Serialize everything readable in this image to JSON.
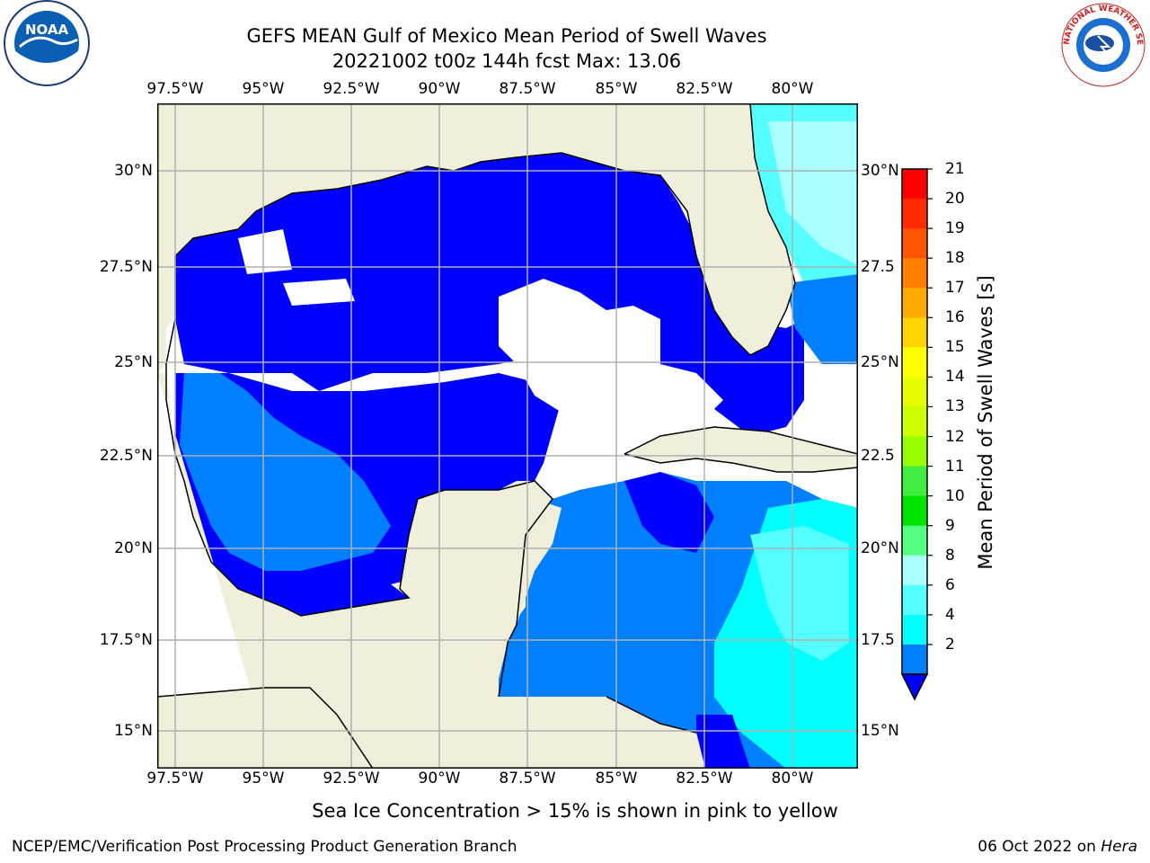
{
  "title": {
    "line1": "GEFS MEAN Gulf of Mexico Mean Period of Swell Waves",
    "line2": "20221002 t00z 144h fcst   Max: 13.06"
  },
  "map": {
    "lon_labels": [
      "97.5°W",
      "95°W",
      "92.5°W",
      "90°W",
      "87.5°W",
      "85°W",
      "82.5°W",
      "80°W"
    ],
    "lat_labels_left": [
      "30°N",
      "27.5°N",
      "25°N",
      "22.5°N",
      "20°N",
      "17.5°N",
      "15°N"
    ],
    "lat_labels_right": [
      "30°N",
      "27.5",
      "25°N",
      "22.5",
      "20°N",
      "17.5",
      "15°N"
    ],
    "land_color": "#efefdc",
    "grid_color": "#b0b0b0"
  },
  "colorbar": {
    "title": "Mean Period of Swell Waves [s]",
    "ticks": [
      "21",
      "20",
      "19",
      "18",
      "17",
      "16",
      "15",
      "14",
      "13",
      "12",
      "11",
      "10",
      "9",
      "8",
      "6",
      "4",
      "2"
    ],
    "colors": [
      "#ff0000",
      "#ff2a00",
      "#ff5500",
      "#ff7f00",
      "#ffaa00",
      "#ffd400",
      "#ffff00",
      "#e5ff00",
      "#cbff00",
      "#99ff00",
      "#3fee3f",
      "#00e500",
      "#55ff80",
      "#aaffff",
      "#55ffff",
      "#00ffff",
      "#0080ff"
    ],
    "extend_color": "#0000ff"
  },
  "note": "Sea Ice Concentration > 15% is shown in pink to yellow",
  "footer": {
    "left": "NCEP/EMC/Verification Post Processing Product Generation Branch",
    "date": "06 Oct 2022 on ",
    "machine": "Hera"
  },
  "logos": {
    "noaa_text": "NOAA",
    "nws_text": "NATIONAL WEATHER SERVICE"
  }
}
